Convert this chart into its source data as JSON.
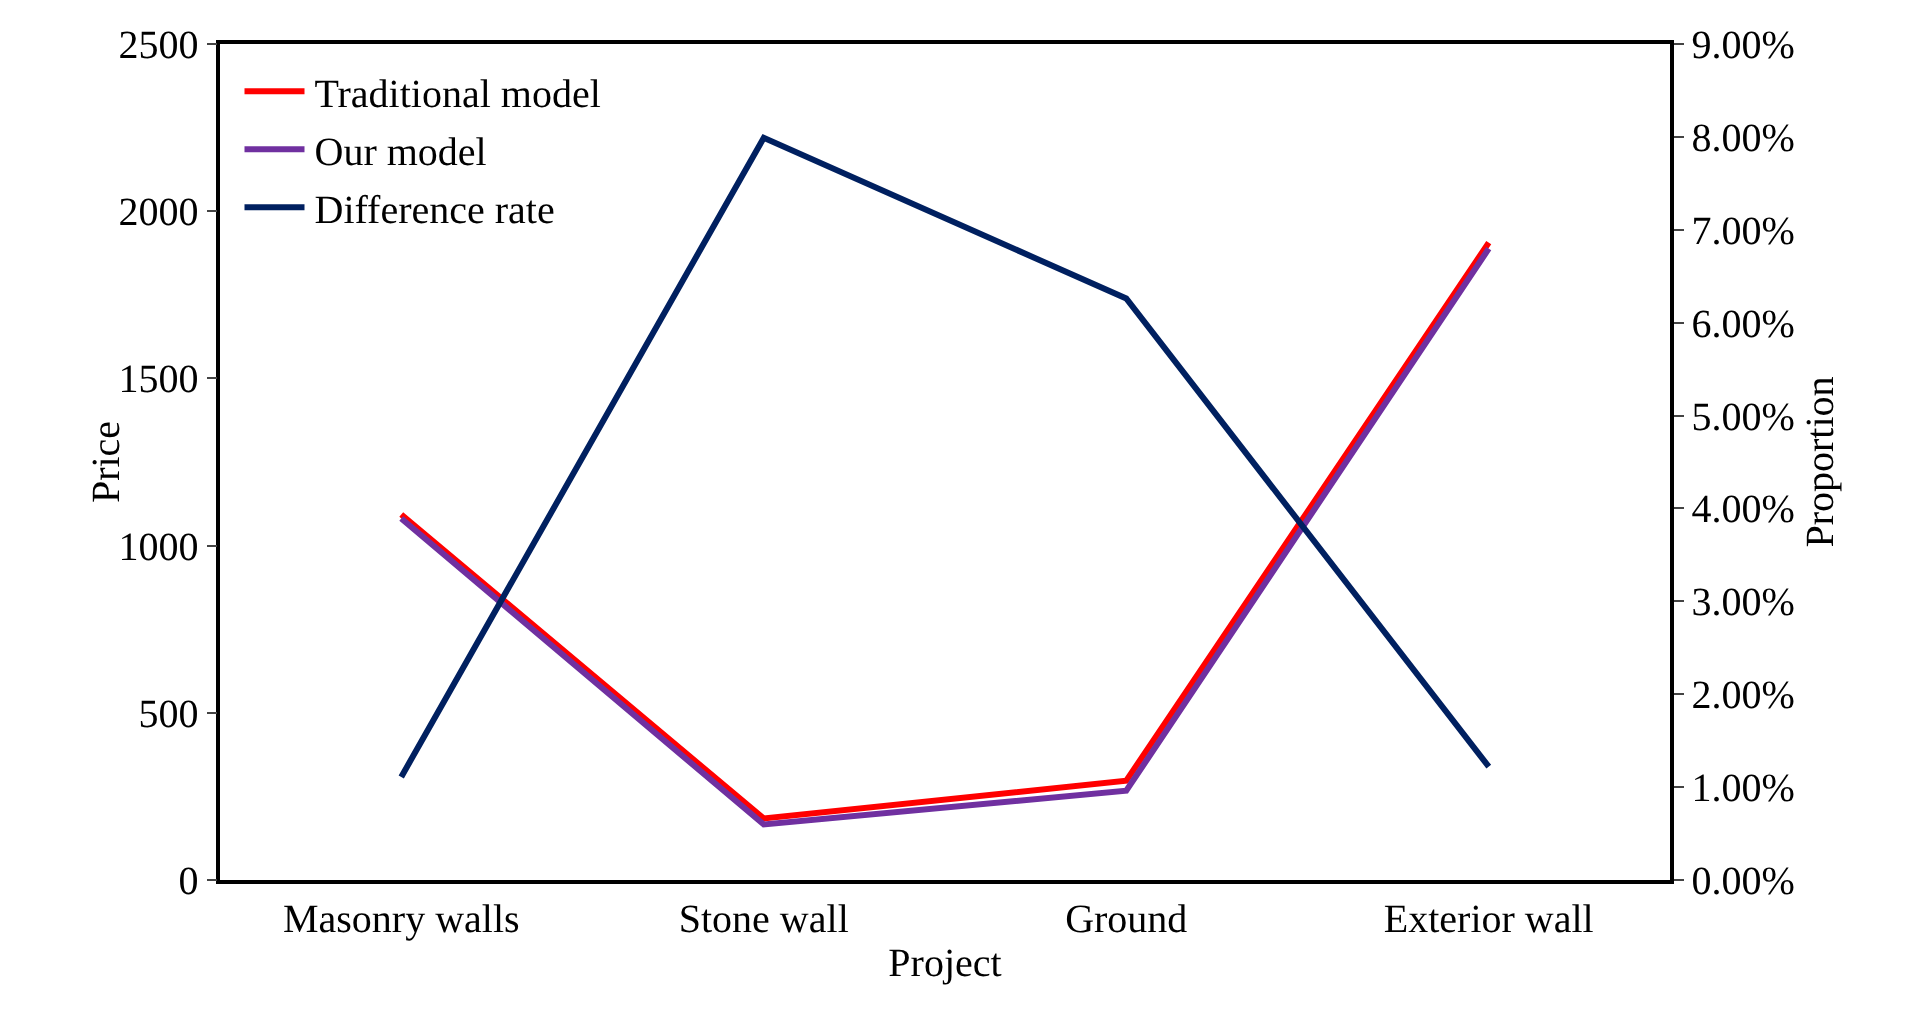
{
  "chart_data": {
    "type": "line",
    "xlabel": "Project",
    "ylabel": "Price",
    "y2label": "Proportion",
    "categories": [
      "Masonry walls",
      "Stone wall",
      "Ground",
      "Exterior wall"
    ],
    "series": [
      {
        "name": "Traditional model",
        "color": "#ff0000",
        "values": [
          1093,
          184,
          297,
          1906
        ]
      },
      {
        "name": "Our model",
        "color": "#7030a0",
        "values": [
          1081,
          166,
          267,
          1888
        ]
      },
      {
        "name": "Difference rate",
        "color": "#002060",
        "axis": "y2",
        "values": [
          1.11,
          7.99,
          6.26,
          1.22
        ]
      }
    ],
    "ylim": [
      0,
      2500
    ],
    "yticks": [
      0,
      500,
      1000,
      1500,
      2000,
      2500
    ],
    "y2lim": [
      0,
      9
    ],
    "y2ticks": [
      {
        "value": 0,
        "label": "0.00%"
      },
      {
        "value": 1,
        "label": "1.00%"
      },
      {
        "value": 2,
        "label": "2.00%"
      },
      {
        "value": 3,
        "label": "3.00%"
      },
      {
        "value": 4,
        "label": "4.00%"
      },
      {
        "value": 5,
        "label": "5.00%"
      },
      {
        "value": 6,
        "label": "6.00%"
      },
      {
        "value": 7,
        "label": "7.00%"
      },
      {
        "value": 8,
        "label": "8.00%"
      },
      {
        "value": 9,
        "label": "9.00%"
      }
    ],
    "grid": false,
    "legend": "top left",
    "marker": "none",
    "line_style": "solid"
  }
}
